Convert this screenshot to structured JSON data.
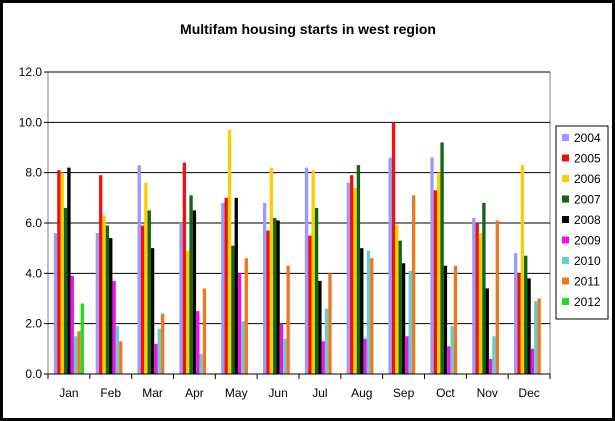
{
  "chart_data": {
    "type": "bar",
    "title": "Multifam housing starts in west region",
    "xlabel": "",
    "ylabel": "",
    "ylim": [
      0,
      12
    ],
    "yticks": [
      "0.0",
      "2.0",
      "4.0",
      "6.0",
      "8.0",
      "10.0",
      "12.0"
    ],
    "grid": true,
    "legend_position": "right",
    "categories": [
      "Jan",
      "Feb",
      "Mar",
      "Apr",
      "May",
      "Jun",
      "Jul",
      "Aug",
      "Sep",
      "Oct",
      "Nov",
      "Dec"
    ],
    "series": [
      {
        "name": "2004",
        "color": "#9999ff",
        "values": [
          5.6,
          5.6,
          8.3,
          6.0,
          6.8,
          6.8,
          8.2,
          7.6,
          8.6,
          8.6,
          6.2,
          4.8
        ]
      },
      {
        "name": "2005",
        "color": "#ee1111",
        "values": [
          8.1,
          7.9,
          5.9,
          8.4,
          7.0,
          5.7,
          5.5,
          7.9,
          10.0,
          7.3,
          6.0,
          4.0
        ]
      },
      {
        "name": "2006",
        "color": "#ffcc00",
        "values": [
          8.0,
          6.3,
          7.6,
          4.9,
          9.7,
          8.2,
          8.1,
          7.4,
          5.9,
          8.0,
          5.6,
          8.3
        ]
      },
      {
        "name": "2007",
        "color": "#116611",
        "values": [
          6.6,
          5.9,
          6.5,
          7.1,
          5.1,
          6.2,
          6.6,
          8.3,
          5.3,
          9.2,
          6.8,
          4.7
        ]
      },
      {
        "name": "2008",
        "color": "#000000",
        "values": [
          8.2,
          5.4,
          5.0,
          6.5,
          7.0,
          6.1,
          3.7,
          5.0,
          4.4,
          4.3,
          3.4,
          3.8
        ]
      },
      {
        "name": "2009",
        "color": "#ee11ee",
        "values": [
          3.9,
          3.7,
          1.2,
          2.5,
          4.0,
          2.0,
          1.3,
          1.4,
          1.5,
          1.1,
          0.6,
          1.0
        ]
      },
      {
        "name": "2010",
        "color": "#66cccc",
        "values": [
          1.5,
          1.9,
          1.8,
          0.8,
          2.1,
          1.4,
          2.6,
          4.9,
          4.1,
          1.9,
          1.5,
          2.9
        ]
      },
      {
        "name": "2011",
        "color": "#ee7722",
        "values": [
          1.7,
          1.3,
          2.4,
          3.4,
          4.6,
          4.3,
          4.0,
          4.6,
          7.1,
          4.3,
          6.1,
          3.0
        ]
      },
      {
        "name": "2012",
        "color": "#22dd22",
        "values": [
          2.8,
          null,
          null,
          null,
          null,
          null,
          null,
          null,
          null,
          null,
          null,
          null
        ]
      }
    ]
  }
}
